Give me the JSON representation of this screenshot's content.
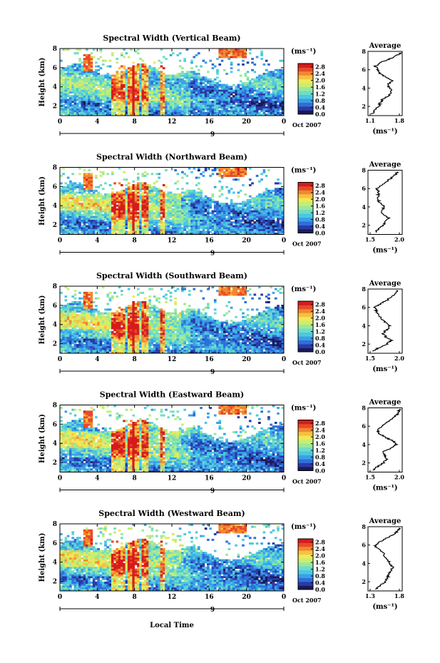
{
  "colors": {
    "colormap": [
      "#1a1a5a",
      "#2a3aa8",
      "#2f6fd8",
      "#3aa0e8",
      "#4cc8e0",
      "#6fdcc8",
      "#9ae89a",
      "#c8ee70",
      "#f0e858",
      "#f8c040",
      "#f08830",
      "#e84a28",
      "#d41c1c"
    ],
    "background": "#ffffff",
    "line": "#000000"
  },
  "figure": {
    "xlabel_bottom": "Local Time",
    "date_label": "Oct 2007",
    "day_label": "9",
    "ylabel": "Height (km)",
    "colorbar_unit": "(ms⁻¹)",
    "avg_unit": "(ms⁻¹)",
    "avg_title": "Average"
  },
  "chart_data": [
    {
      "type": "heatmap",
      "title": "Spectral Width (Vertical Beam)",
      "xlabel": "",
      "ylabel": "Height (km)",
      "xlim": [
        0,
        24
      ],
      "ylim": [
        1,
        8
      ],
      "xticks": [
        "0",
        "4",
        "8",
        "12",
        "16",
        "20",
        "0"
      ],
      "yticks": [
        "2",
        "4",
        "6",
        "8"
      ],
      "colorbar": {
        "ticks": [
          "0.0",
          "0.4",
          "0.8",
          "1.2",
          "1.6",
          "2.0",
          "2.4",
          "2.8"
        ],
        "range": [
          0.0,
          3.0
        ]
      },
      "gap_hours": [
        13.9,
        14.1
      ],
      "average": {
        "title": "Average",
        "xlim": [
          1.1,
          1.8
        ],
        "xticks": [
          "1.1",
          "1.8"
        ],
        "yticks": [
          "2",
          "4",
          "6",
          "8"
        ],
        "height": [
          1.2,
          1.6,
          2.0,
          2.4,
          2.8,
          3.2,
          3.6,
          4.0,
          4.4,
          4.8,
          5.2,
          5.6,
          6.0,
          6.4,
          6.8,
          7.2,
          7.6,
          7.9
        ],
        "value": [
          1.18,
          1.25,
          1.32,
          1.35,
          1.4,
          1.52,
          1.58,
          1.55,
          1.5,
          1.62,
          1.45,
          1.35,
          1.3,
          1.25,
          1.35,
          1.55,
          1.7,
          1.78
        ]
      }
    },
    {
      "type": "heatmap",
      "title": "Spectral Width (Northward Beam)",
      "xlabel": "",
      "ylabel": "Height (km)",
      "xlim": [
        0,
        24
      ],
      "ylim": [
        1,
        8
      ],
      "xticks": [
        "0",
        "4",
        "8",
        "12",
        "16",
        "20",
        "0"
      ],
      "yticks": [
        "2",
        "4",
        "6",
        "8"
      ],
      "colorbar": {
        "ticks": [
          "0.0",
          "0.4",
          "0.8",
          "1.2",
          "1.6",
          "2.0",
          "2.4",
          "2.8"
        ],
        "range": [
          0.0,
          3.0
        ]
      },
      "gap_hours": [
        13.9,
        14.1
      ],
      "average": {
        "title": "Average",
        "xlim": [
          1.1,
          2.1
        ],
        "xticks": [
          "1.5",
          "2.0"
        ],
        "yticks": [
          "2",
          "4",
          "6",
          "8"
        ],
        "height": [
          1.2,
          1.6,
          2.0,
          2.4,
          2.8,
          3.2,
          3.6,
          4.0,
          4.4,
          4.8,
          5.2,
          5.6,
          6.0,
          6.4,
          6.8,
          7.2,
          7.6,
          7.9
        ],
        "value": [
          1.3,
          1.42,
          1.55,
          1.62,
          1.7,
          1.55,
          1.5,
          1.58,
          1.45,
          1.4,
          1.38,
          1.42,
          1.35,
          1.5,
          1.65,
          1.8,
          1.92,
          2.0
        ]
      }
    },
    {
      "type": "heatmap",
      "title": "Spectral Width (Southward Beam)",
      "xlabel": "",
      "ylabel": "Height (km)",
      "xlim": [
        0,
        24
      ],
      "ylim": [
        1,
        8
      ],
      "xticks": [
        "0",
        "4",
        "8",
        "12",
        "16",
        "20",
        "0"
      ],
      "yticks": [
        "2",
        "4",
        "6",
        "8"
      ],
      "colorbar": {
        "ticks": [
          "0.0",
          "0.4",
          "0.8",
          "1.2",
          "1.6",
          "2.0",
          "2.4",
          "2.8"
        ],
        "range": [
          0.0,
          3.0
        ]
      },
      "gap_hours": [
        13.9,
        14.1
      ],
      "average": {
        "title": "Average",
        "xlim": [
          1.3,
          2.1
        ],
        "xticks": [
          "1.5",
          "2.0"
        ],
        "yticks": [
          "2",
          "4",
          "6",
          "8"
        ],
        "height": [
          1.2,
          1.6,
          2.0,
          2.4,
          2.8,
          3.2,
          3.6,
          4.0,
          4.4,
          4.8,
          5.2,
          5.6,
          6.0,
          6.4,
          6.8,
          7.2,
          7.6,
          7.9
        ],
        "value": [
          1.4,
          1.55,
          1.75,
          1.85,
          1.72,
          1.65,
          1.75,
          1.8,
          1.7,
          1.6,
          1.55,
          1.5,
          1.45,
          1.6,
          1.75,
          1.85,
          1.95,
          2.0
        ]
      }
    },
    {
      "type": "heatmap",
      "title": "Spectral Width (Eastward Beam)",
      "xlabel": "",
      "ylabel": "Height (km)",
      "xlim": [
        0,
        24
      ],
      "ylim": [
        1,
        8
      ],
      "xticks": [
        "0",
        "4",
        "8",
        "12",
        "16",
        "20",
        "0"
      ],
      "yticks": [
        "2",
        "4",
        "6",
        "8"
      ],
      "colorbar": {
        "ticks": [
          "0.0",
          "0.4",
          "0.8",
          "1.2",
          "1.6",
          "2.0",
          "2.4",
          "2.8"
        ],
        "range": [
          0.0,
          3.0
        ]
      },
      "gap_hours": [
        13.9,
        14.1
      ],
      "average": {
        "title": "Average",
        "xlim": [
          1.3,
          2.2
        ],
        "xticks": [
          "1.5",
          "2.0"
        ],
        "yticks": [
          "2",
          "4",
          "6",
          "8"
        ],
        "height": [
          1.2,
          1.6,
          2.0,
          2.4,
          2.8,
          3.2,
          3.6,
          4.0,
          4.4,
          4.8,
          5.2,
          5.6,
          6.0,
          6.4,
          6.8,
          7.2,
          7.6,
          7.9
        ],
        "value": [
          1.45,
          1.55,
          1.7,
          1.8,
          1.75,
          1.7,
          1.9,
          2.05,
          1.95,
          1.75,
          1.6,
          1.55,
          1.65,
          1.8,
          1.95,
          2.05,
          2.1,
          2.15
        ]
      }
    },
    {
      "type": "heatmap",
      "title": "Spectral Width (Westward Beam)",
      "xlabel": "Local Time",
      "ylabel": "Height (km)",
      "xlim": [
        0,
        24
      ],
      "ylim": [
        1,
        8
      ],
      "xticks": [
        "0",
        "4",
        "8",
        "12",
        "16",
        "20",
        "0"
      ],
      "yticks": [
        "2",
        "4",
        "6",
        "8"
      ],
      "colorbar": {
        "ticks": [
          "0.0",
          "0.4",
          "0.8",
          "1.2",
          "1.6",
          "2.0",
          "2.4",
          "2.8"
        ],
        "range": [
          0.0,
          3.0
        ]
      },
      "gap_hours": [
        13.9,
        14.1
      ],
      "average": {
        "title": "Average",
        "xlim": [
          1.2,
          1.9
        ],
        "xticks": [
          "1.3",
          "1.8"
        ],
        "yticks": [
          "2",
          "4",
          "6",
          "8"
        ],
        "height": [
          1.2,
          1.6,
          2.0,
          2.4,
          2.8,
          3.2,
          3.6,
          4.0,
          4.4,
          4.8,
          5.2,
          5.6,
          6.0,
          6.4,
          6.8,
          7.2,
          7.6,
          7.9
        ],
        "value": [
          1.35,
          1.45,
          1.55,
          1.6,
          1.62,
          1.68,
          1.7,
          1.65,
          1.6,
          1.55,
          1.5,
          1.4,
          1.35,
          1.45,
          1.6,
          1.75,
          1.82,
          1.85
        ]
      }
    }
  ]
}
